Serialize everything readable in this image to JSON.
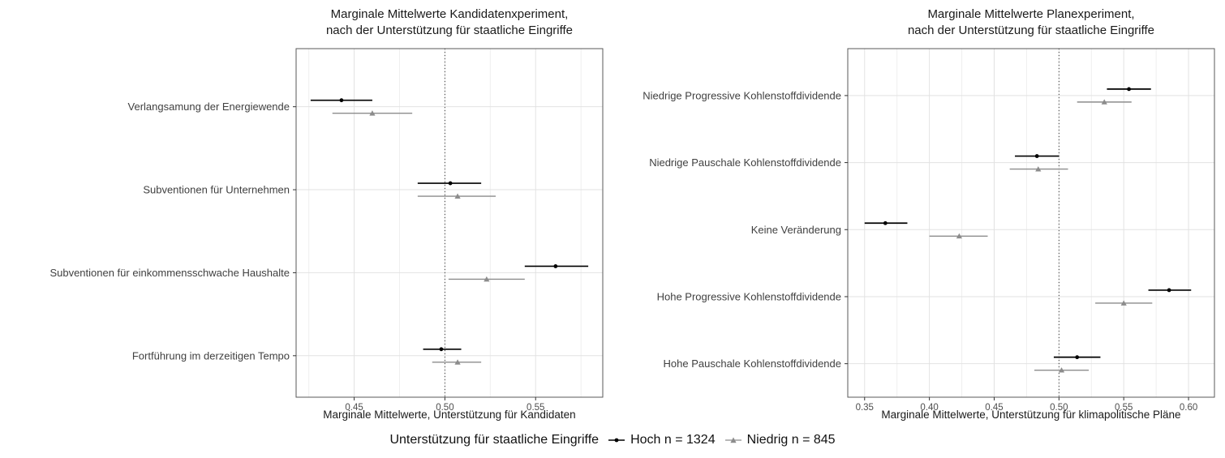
{
  "page": {
    "background": "#ffffff"
  },
  "legend": {
    "title": "Unterstützung für staatliche Eingriffe",
    "position": "bottom",
    "items": [
      {
        "label": "Hoch n = 1324",
        "marker": "circle",
        "color": "#000000"
      },
      {
        "label": "Niedrig n = 845",
        "marker": "triangle",
        "color": "#8c8c8c"
      }
    ]
  },
  "chart_data": [
    {
      "type": "scatter",
      "subtype": "dot-whisker-forest",
      "title": "Marginale Mittelwerte Kandidatenxperiment,\nnach der Unterstützung für staatliche Eingriffe",
      "xlabel": "Marginale Mittelwerte, Unterstützung für Kandidaten",
      "xlim": [
        0.418,
        0.587
      ],
      "xticks": [
        0.45,
        0.5,
        0.55
      ],
      "reference_line_x": 0.5,
      "grid": true,
      "categories": [
        "Verlangsamung der Energiewende",
        "Subventionen für Unternehmen",
        "Subventionen für einkommensschwache Haushalte",
        "Fortführung im derzeitigen Tempo"
      ],
      "series": [
        {
          "name": "Hoch n = 1324",
          "marker": "circle",
          "color": "#000000",
          "values": [
            0.443,
            0.503,
            0.561,
            0.498
          ],
          "ci_low": [
            0.426,
            0.485,
            0.544,
            0.488
          ],
          "ci_high": [
            0.46,
            0.52,
            0.579,
            0.509
          ]
        },
        {
          "name": "Niedrig n = 845",
          "marker": "triangle",
          "color": "#8c8c8c",
          "values": [
            0.46,
            0.507,
            0.523,
            0.507
          ],
          "ci_low": [
            0.438,
            0.485,
            0.502,
            0.493
          ],
          "ci_high": [
            0.482,
            0.528,
            0.544,
            0.52
          ]
        }
      ]
    },
    {
      "type": "scatter",
      "subtype": "dot-whisker-forest",
      "title": "Marginale Mittelwerte Planexperiment,\nnach der Unterstützung für staatliche Eingriffe",
      "xlabel": "Marginale Mittelwerte, Unterstützung für klimapolitische Pläne",
      "xlim": [
        0.337,
        0.62
      ],
      "xticks": [
        0.35,
        0.4,
        0.45,
        0.5,
        0.55,
        0.6
      ],
      "reference_line_x": 0.5,
      "grid": true,
      "categories": [
        "Niedrige Progressive Kohlenstoffdividende",
        "Niedrige Pauschale Kohlenstoffdividende",
        "Keine Veränderung",
        "Hohe Progressive Kohlenstoffdividende",
        "Hohe Pauschale Kohlenstoffdividende"
      ],
      "series": [
        {
          "name": "Hoch n = 1324",
          "marker": "circle",
          "color": "#000000",
          "values": [
            0.554,
            0.483,
            0.366,
            0.585,
            0.514
          ],
          "ci_low": [
            0.537,
            0.466,
            0.35,
            0.569,
            0.496
          ],
          "ci_high": [
            0.571,
            0.5,
            0.383,
            0.602,
            0.532
          ]
        },
        {
          "name": "Niedrig n = 845",
          "marker": "triangle",
          "color": "#8c8c8c",
          "values": [
            0.535,
            0.484,
            0.423,
            0.55,
            0.502
          ],
          "ci_low": [
            0.514,
            0.462,
            0.4,
            0.528,
            0.481
          ],
          "ci_high": [
            0.556,
            0.507,
            0.445,
            0.572,
            0.523
          ]
        }
      ]
    }
  ]
}
